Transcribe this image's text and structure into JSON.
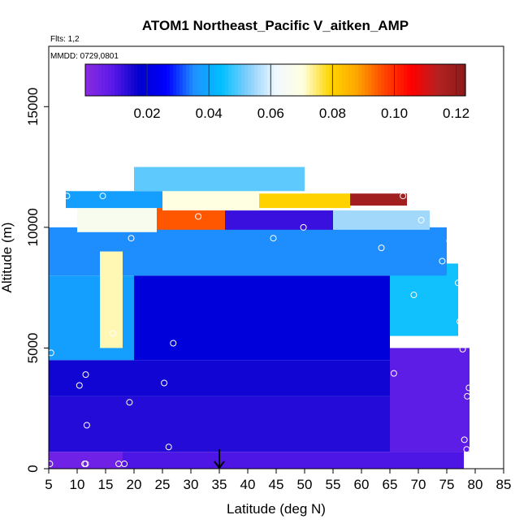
{
  "chart_data": {
    "type": "heatmap",
    "title": "ATOM1 Northeast_Pacific V_aitken_AMP",
    "annotations": [
      "Flts: 1,2",
      "MMDD: 0729,0801"
    ],
    "xlabel": "Latitude (deg N)",
    "ylabel": "Altitude (m)",
    "xlim": [
      5,
      85
    ],
    "ylim": [
      0,
      17500
    ],
    "xticks": [
      "5",
      "10",
      "15",
      "20",
      "25",
      "30",
      "35",
      "40",
      "45",
      "50",
      "55",
      "60",
      "65",
      "70",
      "75",
      "80",
      "85"
    ],
    "yticks": [
      "0",
      "5000",
      "10000",
      "15000"
    ],
    "colorbar": {
      "range": [
        0.0,
        0.123
      ],
      "ticks": [
        "0.02",
        "0.04",
        "0.06",
        "0.08",
        "0.10",
        "0.12"
      ],
      "placement": "top-inside",
      "colors": [
        "#8a2be2",
        "#5a1ae8",
        "#0000cd",
        "#0000ff",
        "#1e90ff",
        "#00bfff",
        "#87cefa",
        "#f0f8ff",
        "#ffffe0",
        "#ffd700",
        "#ffa500",
        "#ff4500",
        "#ff0000",
        "#b22222",
        "#8b1a1a"
      ]
    },
    "grid": false,
    "marker": {
      "latitude": 35,
      "altitude": 0,
      "symbol": "down-arrow"
    },
    "regions": [
      {
        "lat": [
          5,
          18
        ],
        "alt": [
          0,
          700
        ],
        "value": 0.005
      },
      {
        "lat": [
          18,
          78
        ],
        "alt": [
          0,
          700
        ],
        "value": 0.01
      },
      {
        "lat": [
          5,
          78
        ],
        "alt": [
          700,
          3000
        ],
        "value": 0.014
      },
      {
        "lat": [
          65,
          79
        ],
        "alt": [
          700,
          5000
        ],
        "value": 0.008
      },
      {
        "lat": [
          5,
          65
        ],
        "alt": [
          3000,
          4500
        ],
        "value": 0.016
      },
      {
        "lat": [
          5,
          20
        ],
        "alt": [
          4500,
          8000
        ],
        "value": 0.038
      },
      {
        "lat": [
          20,
          65
        ],
        "alt": [
          4500,
          8000
        ],
        "value": 0.02
      },
      {
        "lat": [
          65,
          77
        ],
        "alt": [
          5500,
          8500
        ],
        "value": 0.045
      },
      {
        "lat": [
          5,
          75
        ],
        "alt": [
          8000,
          10000
        ],
        "value": 0.035
      },
      {
        "lat": [
          14,
          18
        ],
        "alt": [
          5000,
          9000
        ],
        "value": 0.072
      },
      {
        "lat": [
          10,
          24
        ],
        "alt": [
          9800,
          10800
        ],
        "value": 0.066
      },
      {
        "lat": [
          24,
          36
        ],
        "alt": [
          9900,
          10800
        ],
        "value": 0.095
      },
      {
        "lat": [
          36,
          55
        ],
        "alt": [
          9900,
          10700
        ],
        "value": 0.012
      },
      {
        "lat": [
          55,
          72
        ],
        "alt": [
          9900,
          10700
        ],
        "value": 0.055
      },
      {
        "lat": [
          8,
          25
        ],
        "alt": [
          10800,
          11500
        ],
        "value": 0.038
      },
      {
        "lat": [
          25,
          42
        ],
        "alt": [
          10700,
          11600
        ],
        "value": 0.07
      },
      {
        "lat": [
          42,
          58
        ],
        "alt": [
          10800,
          11400
        ],
        "value": 0.08
      },
      {
        "lat": [
          58,
          68
        ],
        "alt": [
          10900,
          11400
        ],
        "value": 0.118
      },
      {
        "lat": [
          20,
          50
        ],
        "alt": [
          11500,
          12500
        ],
        "value": 0.05
      }
    ],
    "points": [
      {
        "lat": 5.2,
        "alt": 200
      },
      {
        "lat": 11.3,
        "alt": 200
      },
      {
        "lat": 11.5,
        "alt": 200
      },
      {
        "lat": 17.3,
        "alt": 200
      },
      {
        "lat": 18.3,
        "alt": 200
      },
      {
        "lat": 11.7,
        "alt": 1800
      },
      {
        "lat": 19.2,
        "alt": 2750
      },
      {
        "lat": 10.4,
        "alt": 3450
      },
      {
        "lat": 11.5,
        "alt": 3900
      },
      {
        "lat": 5.4,
        "alt": 4800
      },
      {
        "lat": 25.3,
        "alt": 3550
      },
      {
        "lat": 26.1,
        "alt": 900
      },
      {
        "lat": 26.9,
        "alt": 5200
      },
      {
        "lat": 16.3,
        "alt": 5600
      },
      {
        "lat": 19.5,
        "alt": 9550
      },
      {
        "lat": 8.2,
        "alt": 11300
      },
      {
        "lat": 14.5,
        "alt": 11300
      },
      {
        "lat": 31.3,
        "alt": 10450
      },
      {
        "lat": 44.5,
        "alt": 9550
      },
      {
        "lat": 49.8,
        "alt": 10000
      },
      {
        "lat": 63.5,
        "alt": 9150
      },
      {
        "lat": 65.7,
        "alt": 3950
      },
      {
        "lat": 67.3,
        "alt": 11300
      },
      {
        "lat": 69.2,
        "alt": 7200
      },
      {
        "lat": 70.5,
        "alt": 10300
      },
      {
        "lat": 74.2,
        "alt": 8600
      },
      {
        "lat": 75.5,
        "alt": 9450
      },
      {
        "lat": 76.6,
        "alt": 9700
      },
      {
        "lat": 77.0,
        "alt": 7700
      },
      {
        "lat": 77.3,
        "alt": 6100
      },
      {
        "lat": 77.8,
        "alt": 4950
      },
      {
        "lat": 78.1,
        "alt": 1200
      },
      {
        "lat": 78.5,
        "alt": 800
      },
      {
        "lat": 78.6,
        "alt": 3000
      },
      {
        "lat": 78.9,
        "alt": 3350
      },
      {
        "lat": 79.0,
        "alt": 5650
      }
    ]
  }
}
